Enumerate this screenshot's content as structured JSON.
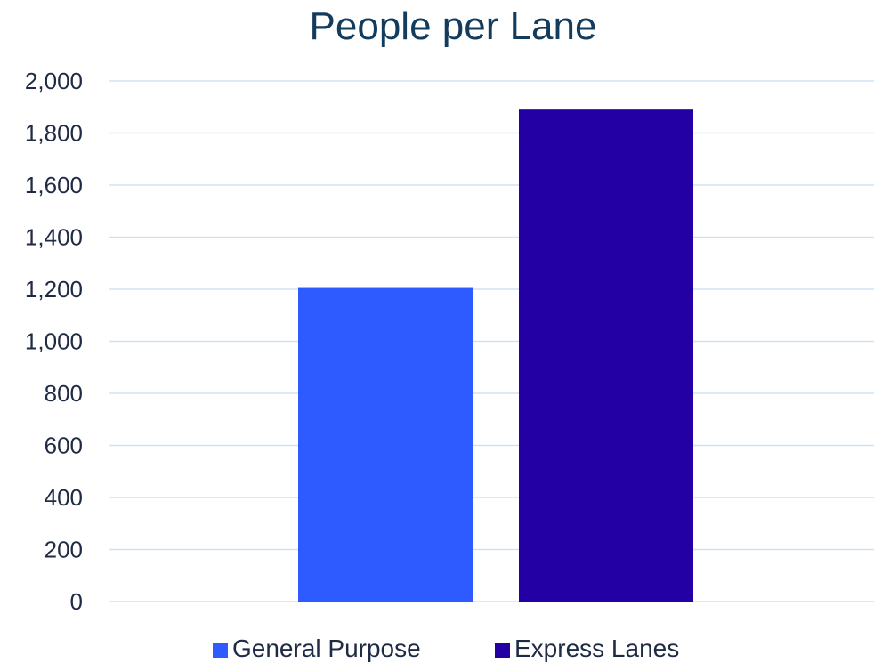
{
  "chart_data": {
    "type": "bar",
    "title": "People per Lane",
    "xlabel": "",
    "ylabel": "",
    "ylim": [
      0,
      2000
    ],
    "yticks": [
      0,
      200,
      400,
      600,
      800,
      1000,
      1200,
      1400,
      1600,
      1800,
      2000
    ],
    "ytick_labels": [
      "0",
      "200",
      "400",
      "600",
      "800",
      "1,000",
      "1,200",
      "1,400",
      "1,600",
      "1,800",
      "2,000"
    ],
    "grid": true,
    "legend_position": "bottom",
    "series": [
      {
        "name": "General Purpose",
        "values": [
          1205
        ],
        "color": "#2e5bff"
      },
      {
        "name": "Express Lanes",
        "values": [
          1890
        ],
        "color": "#2300a3"
      }
    ]
  }
}
